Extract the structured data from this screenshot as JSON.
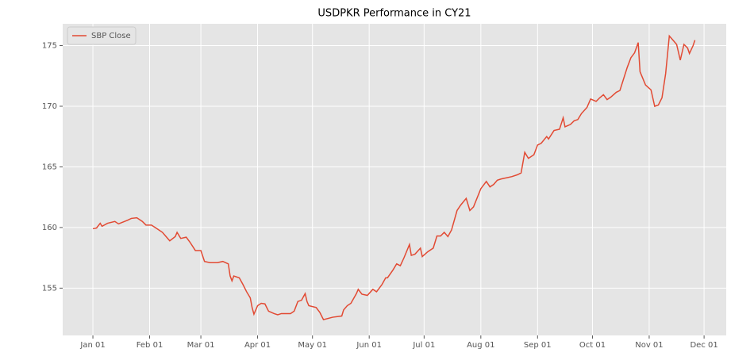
{
  "chart_data": {
    "type": "line",
    "title": "USDPKR Performance in CY21",
    "series": [
      {
        "name": "SBP Close",
        "color": "#e24a33",
        "x": [
          0,
          2,
          4,
          5,
          8,
          12,
          14,
          19,
          21,
          24,
          27,
          29,
          32,
          35,
          38,
          40,
          42,
          45,
          46,
          48,
          51,
          53,
          56,
          59,
          61,
          64,
          68,
          71,
          74,
          75,
          76,
          77,
          80,
          82,
          84,
          86,
          87,
          88,
          90,
          92,
          94,
          96,
          99,
          101,
          103,
          108,
          110,
          112,
          114,
          116,
          117,
          118,
          122,
          124,
          126,
          131,
          136,
          137,
          139,
          141,
          144,
          145,
          147,
          150,
          153,
          155,
          158,
          160,
          161,
          164,
          166,
          168,
          170,
          173,
          174,
          176,
          179,
          180,
          183,
          186,
          188,
          190,
          192,
          194,
          196,
          199,
          201,
          204,
          206,
          208,
          212,
          215,
          217,
          219,
          221,
          223,
          226,
          229,
          232,
          234,
          236,
          238,
          241,
          243,
          245,
          248,
          249,
          252,
          255,
          257,
          258,
          261,
          263,
          265,
          267,
          270,
          272,
          275,
          277,
          279,
          281,
          283,
          286,
          288,
          292,
          294,
          296,
          298,
          299,
          302,
          305,
          307,
          309,
          311,
          313,
          315,
          317,
          319,
          321,
          323,
          325,
          326,
          328,
          329
        ],
        "values": [
          159.9,
          159.96,
          160.35,
          160.1,
          160.35,
          160.5,
          160.3,
          160.6,
          160.75,
          160.8,
          160.5,
          160.2,
          160.2,
          159.9,
          159.6,
          159.25,
          158.9,
          159.25,
          159.6,
          159.1,
          159.2,
          158.8,
          158.1,
          158.1,
          157.2,
          157.1,
          157.1,
          157.2,
          157.0,
          156.0,
          155.6,
          156.0,
          155.85,
          155.3,
          154.7,
          154.2,
          153.4,
          152.85,
          153.55,
          153.75,
          153.7,
          153.1,
          152.9,
          152.8,
          152.9,
          152.9,
          153.1,
          153.9,
          154.0,
          154.55,
          153.9,
          153.55,
          153.4,
          153.0,
          152.4,
          152.6,
          152.7,
          153.2,
          153.55,
          153.75,
          154.55,
          154.9,
          154.5,
          154.4,
          154.9,
          154.7,
          155.3,
          155.85,
          155.85,
          156.5,
          157.0,
          156.85,
          157.5,
          158.6,
          157.7,
          157.8,
          158.3,
          157.6,
          158.0,
          158.3,
          159.3,
          159.3,
          159.6,
          159.25,
          159.8,
          161.4,
          161.85,
          162.4,
          161.4,
          161.7,
          163.2,
          163.8,
          163.35,
          163.55,
          163.9,
          164.0,
          164.1,
          164.2,
          164.35,
          164.5,
          166.2,
          165.7,
          166.0,
          166.8,
          166.95,
          167.5,
          167.3,
          168.0,
          168.1,
          169.05,
          168.3,
          168.5,
          168.8,
          168.9,
          169.4,
          169.9,
          170.6,
          170.4,
          170.7,
          170.95,
          170.55,
          170.75,
          171.15,
          171.3,
          173.2,
          174.0,
          174.4,
          175.25,
          172.85,
          171.75,
          171.35,
          170.0,
          170.1,
          170.7,
          172.7,
          175.8,
          175.45,
          175.1,
          173.8,
          175.1,
          174.8,
          174.35,
          175.0,
          175.45
        ]
      }
    ],
    "xlim": [
      -16.5,
      346.1
    ],
    "xticks": [
      {
        "value": 0,
        "label": "Jan 01"
      },
      {
        "value": 31,
        "label": "Feb 01"
      },
      {
        "value": 59,
        "label": "Mar 01"
      },
      {
        "value": 90,
        "label": "Apr 01"
      },
      {
        "value": 120,
        "label": "May 01"
      },
      {
        "value": 151,
        "label": "Jun 01"
      },
      {
        "value": 181,
        "label": "Jul 01"
      },
      {
        "value": 212,
        "label": "Aug 01"
      },
      {
        "value": 243,
        "label": "Sep 01"
      },
      {
        "value": 273,
        "label": "Oct 01"
      },
      {
        "value": 304,
        "label": "Nov 01"
      },
      {
        "value": 334,
        "label": "Dec 01"
      }
    ],
    "ylim": [
      151.1,
      176.8
    ],
    "yticks": [
      155,
      160,
      165,
      170,
      175
    ],
    "grid": true,
    "legend": "upper left"
  }
}
